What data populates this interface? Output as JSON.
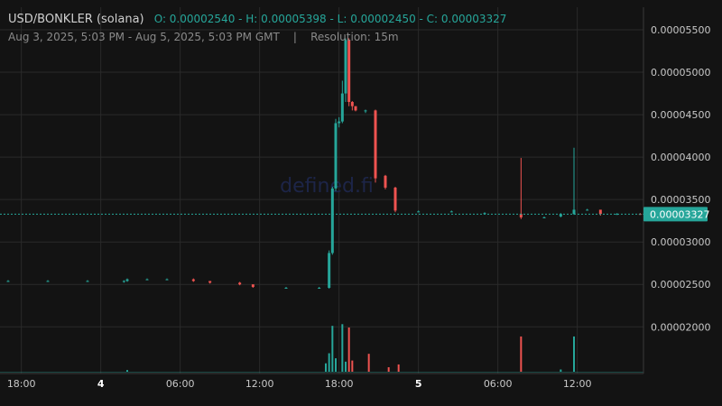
{
  "header": {
    "pair": "USD/BONKLER (solana)",
    "ohlc": "O: 0.00002540 - H: 0.00005398 - L: 0.00002450 - C: 0.00003327",
    "range": "Aug 3, 2025, 5:03 PM - Aug 5, 2025, 5:03 PM GMT",
    "separator": "|",
    "resolution": "Resolution: 15m"
  },
  "watermark": "defined.fi",
  "colors": {
    "background": "#131313",
    "up": "#26a69a",
    "down": "#ef5350",
    "grid": "#2a2a2a",
    "last_price_bg": "#26a69a"
  },
  "last_price_label": "0.00003327",
  "chart_data": {
    "type": "candlestick",
    "x_tick_labels": [
      {
        "label": "18:00",
        "hour": 1,
        "bold": false
      },
      {
        "label": "4",
        "hour": 7,
        "bold": true
      },
      {
        "label": "06:00",
        "hour": 13,
        "bold": false
      },
      {
        "label": "12:00",
        "hour": 19,
        "bold": false
      },
      {
        "label": "18:00",
        "hour": 25,
        "bold": false
      },
      {
        "label": "5",
        "hour": 31,
        "bold": true
      },
      {
        "label": "06:00",
        "hour": 37,
        "bold": false
      },
      {
        "label": "12:00",
        "hour": 43,
        "bold": false
      }
    ],
    "y_tick_labels": [
      "0.00002000",
      "0.00002500",
      "0.00003000",
      "0.00003500",
      "0.00004000",
      "0.00004500",
      "0.00005000",
      "0.00005500"
    ],
    "y_ticks": [
      2e-05,
      2.5e-05,
      3e-05,
      3.5e-05,
      4e-05,
      4.5e-05,
      5e-05,
      5.5e-05
    ],
    "ylim": [
      1.45e-05,
      5.766e-05
    ],
    "xlim": [
      0,
      48
    ],
    "last_price": 3.327e-05,
    "candles": [
      {
        "h": 0,
        "o": 2.54e-05,
        "hi": 2.55e-05,
        "lo": 2.53e-05,
        "c": 2.54e-05
      },
      {
        "h": 3,
        "o": 2.54e-05,
        "hi": 2.55e-05,
        "lo": 2.53e-05,
        "c": 2.54e-05
      },
      {
        "h": 6,
        "o": 2.54e-05,
        "hi": 2.55e-05,
        "lo": 2.53e-05,
        "c": 2.54e-05
      },
      {
        "h": 8.75,
        "o": 2.53e-05,
        "hi": 2.55e-05,
        "lo": 2.52e-05,
        "c": 2.54e-05
      },
      {
        "h": 9,
        "o": 2.54e-05,
        "hi": 2.57e-05,
        "lo": 2.53e-05,
        "c": 2.56e-05
      },
      {
        "h": 10.5,
        "o": 2.56e-05,
        "hi": 2.57e-05,
        "lo": 2.55e-05,
        "c": 2.56e-05
      },
      {
        "h": 12,
        "o": 2.56e-05,
        "hi": 2.57e-05,
        "lo": 2.55e-05,
        "c": 2.56e-05
      },
      {
        "h": 14,
        "o": 2.56e-05,
        "hi": 2.57e-05,
        "lo": 2.53e-05,
        "c": 2.54e-05
      },
      {
        "h": 15.25,
        "o": 2.54e-05,
        "hi": 2.54e-05,
        "lo": 2.51e-05,
        "c": 2.52e-05
      },
      {
        "h": 17.5,
        "o": 2.52e-05,
        "hi": 2.53e-05,
        "lo": 2.49e-05,
        "c": 2.5e-05
      },
      {
        "h": 18.5,
        "o": 2.5e-05,
        "hi": 2.5e-05,
        "lo": 2.46e-05,
        "c": 2.47e-05
      },
      {
        "h": 21,
        "o": 2.46e-05,
        "hi": 2.47e-05,
        "lo": 2.45e-05,
        "c": 2.46e-05
      },
      {
        "h": 23.5,
        "o": 2.46e-05,
        "hi": 2.47e-05,
        "lo": 2.45e-05,
        "c": 2.46e-05
      },
      {
        "h": 24.25,
        "o": 2.46e-05,
        "hi": 2.9e-05,
        "lo": 2.45e-05,
        "c": 2.87e-05
      },
      {
        "h": 24.5,
        "o": 2.87e-05,
        "hi": 3.65e-05,
        "lo": 2.85e-05,
        "c": 3.63e-05
      },
      {
        "h": 24.75,
        "o": 3.63e-05,
        "hi": 4.45e-05,
        "lo": 3.6e-05,
        "c": 4.4e-05
      },
      {
        "h": 25,
        "o": 4.4e-05,
        "hi": 4.47e-05,
        "lo": 4.35e-05,
        "c": 4.42e-05
      },
      {
        "h": 25.25,
        "o": 4.42e-05,
        "hi": 4.9e-05,
        "lo": 4.4e-05,
        "c": 4.75e-05
      },
      {
        "h": 25.5,
        "o": 4.75e-05,
        "hi": 5.398e-05,
        "lo": 4.65e-05,
        "c": 5.38e-05
      },
      {
        "h": 25.75,
        "o": 5.38e-05,
        "hi": 5.4e-05,
        "lo": 4.6e-05,
        "c": 4.65e-05
      },
      {
        "h": 26,
        "o": 4.65e-05,
        "hi": 4.66e-05,
        "lo": 4.55e-05,
        "c": 4.6e-05
      },
      {
        "h": 26.25,
        "o": 4.6e-05,
        "hi": 4.6e-05,
        "lo": 4.54e-05,
        "c": 4.55e-05
      },
      {
        "h": 27,
        "o": 4.55e-05,
        "hi": 4.56e-05,
        "lo": 4.52e-05,
        "c": 4.55e-05
      },
      {
        "h": 27.75,
        "o": 4.55e-05,
        "hi": 4.56e-05,
        "lo": 3.7e-05,
        "c": 3.75e-05
      },
      {
        "h": 28.5,
        "o": 3.78e-05,
        "hi": 3.79e-05,
        "lo": 3.62e-05,
        "c": 3.64e-05
      },
      {
        "h": 29.25,
        "o": 3.64e-05,
        "hi": 3.65e-05,
        "lo": 3.35e-05,
        "c": 3.37e-05
      },
      {
        "h": 31,
        "o": 3.36e-05,
        "hi": 3.37e-05,
        "lo": 3.35e-05,
        "c": 3.36e-05
      },
      {
        "h": 33.5,
        "o": 3.36e-05,
        "hi": 3.37e-05,
        "lo": 3.35e-05,
        "c": 3.36e-05
      },
      {
        "h": 36,
        "o": 3.34e-05,
        "hi": 3.35e-05,
        "lo": 3.33e-05,
        "c": 3.34e-05
      },
      {
        "h": 38.75,
        "o": 3.33e-05,
        "hi": 3.99e-05,
        "lo": 3.27e-05,
        "c": 3.29e-05
      },
      {
        "h": 40.5,
        "o": 3.29e-05,
        "hi": 3.3e-05,
        "lo": 3.28e-05,
        "c": 3.29e-05
      },
      {
        "h": 41.75,
        "o": 3.3e-05,
        "hi": 3.34e-05,
        "lo": 3.29e-05,
        "c": 3.33e-05
      },
      {
        "h": 42.75,
        "o": 3.33e-05,
        "hi": 4.11e-05,
        "lo": 3.32e-05,
        "c": 3.38e-05
      },
      {
        "h": 43.75,
        "o": 3.38e-05,
        "hi": 3.39e-05,
        "lo": 3.37e-05,
        "c": 3.38e-05
      },
      {
        "h": 44.75,
        "o": 3.38e-05,
        "hi": 3.38e-05,
        "lo": 3.31e-05,
        "c": 3.33e-05
      },
      {
        "h": 46,
        "o": 3.33e-05,
        "hi": 3.34e-05,
        "lo": 3.32e-05,
        "c": 3.33e-05
      },
      {
        "h": 47.75,
        "o": 3.33e-05,
        "hi": 3.34e-05,
        "lo": 3.32e-05,
        "c": 3.327e-05
      }
    ],
    "volume": [
      {
        "h": 9,
        "v": 0.03,
        "up": true
      },
      {
        "h": 24,
        "v": 0.15,
        "up": true
      },
      {
        "h": 24.25,
        "v": 0.33,
        "up": true
      },
      {
        "h": 24.5,
        "v": 0.82,
        "up": true
      },
      {
        "h": 24.75,
        "v": 0.24,
        "up": true
      },
      {
        "h": 25.25,
        "v": 0.85,
        "up": true
      },
      {
        "h": 25.5,
        "v": 0.18,
        "up": true
      },
      {
        "h": 25.75,
        "v": 0.79,
        "up": false
      },
      {
        "h": 26,
        "v": 0.2,
        "up": false
      },
      {
        "h": 27.25,
        "v": 0.32,
        "up": false
      },
      {
        "h": 28.75,
        "v": 0.08,
        "up": false
      },
      {
        "h": 29.5,
        "v": 0.13,
        "up": false
      },
      {
        "h": 38.75,
        "v": 0.63,
        "up": false
      },
      {
        "h": 41.75,
        "v": 0.04,
        "up": true
      },
      {
        "h": 42.75,
        "v": 0.63,
        "up": true
      }
    ]
  }
}
